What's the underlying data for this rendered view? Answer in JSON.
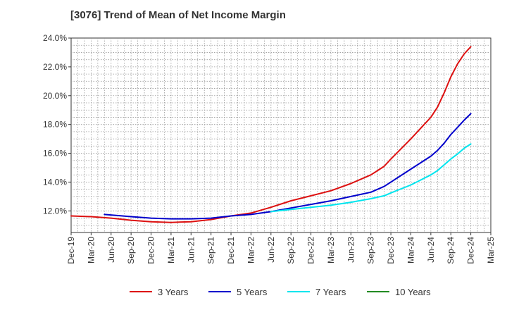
{
  "chart_data": {
    "type": "line",
    "title": "[3076]  Trend of Mean of Net Income Margin",
    "xlabel": "",
    "ylabel": "",
    "x_ticks": [
      "Dec-19",
      "Mar-20",
      "Jun-20",
      "Sep-20",
      "Dec-20",
      "Mar-21",
      "Jun-21",
      "Sep-21",
      "Dec-21",
      "Mar-22",
      "Jun-22",
      "Sep-22",
      "Dec-22",
      "Mar-23",
      "Jun-23",
      "Sep-23",
      "Dec-23",
      "Mar-24",
      "Jun-24",
      "Sep-24",
      "Dec-24",
      "Mar-25"
    ],
    "y_ticks": [
      "12.0%",
      "14.0%",
      "16.0%",
      "18.0%",
      "20.0%",
      "22.0%",
      "24.0%"
    ],
    "ylim": [
      10.5,
      24.0
    ],
    "grid": true,
    "legend_position": "bottom",
    "series": [
      {
        "name": "3 Years",
        "color": "#dd1111",
        "x": [
          "Dec-19",
          "Mar-20",
          "Jun-20",
          "Sep-20",
          "Dec-20",
          "Mar-21",
          "Jun-21",
          "Sep-21",
          "Dec-21",
          "Mar-22",
          "Jun-22",
          "Sep-22",
          "Dec-22",
          "Mar-23",
          "Jun-23",
          "Sep-23",
          "Oct-23",
          "Nov-23",
          "Dec-23",
          "Mar-24",
          "Jun-24",
          "Jul-24",
          "Aug-24",
          "Sep-24",
          "Oct-24",
          "Nov-24",
          "Dec-24"
        ],
        "values": [
          11.65,
          11.6,
          11.5,
          11.35,
          11.25,
          11.2,
          11.25,
          11.4,
          11.65,
          11.85,
          12.25,
          12.7,
          13.05,
          13.4,
          13.9,
          14.5,
          14.8,
          15.1,
          15.6,
          17.0,
          18.5,
          19.2,
          20.2,
          21.3,
          22.2,
          22.9,
          23.4
        ]
      },
      {
        "name": "5 Years",
        "color": "#0000cc",
        "x": [
          "May-20",
          "Sep-20",
          "Dec-20",
          "Mar-21",
          "Jun-21",
          "Sep-21",
          "Dec-21",
          "Mar-22",
          "Jun-22",
          "Sep-22",
          "Dec-22",
          "Mar-23",
          "Jun-23",
          "Sep-23",
          "Oct-23",
          "Nov-23",
          "Dec-23",
          "Mar-24",
          "Jun-24",
          "Jul-24",
          "Aug-24",
          "Sep-24",
          "Oct-24",
          "Nov-24",
          "Dec-24"
        ],
        "values": [
          11.75,
          11.6,
          11.5,
          11.45,
          11.45,
          11.5,
          11.65,
          11.75,
          11.95,
          12.2,
          12.45,
          12.7,
          13.0,
          13.3,
          13.5,
          13.7,
          14.0,
          14.9,
          15.8,
          16.2,
          16.7,
          17.3,
          17.8,
          18.3,
          18.75
        ]
      },
      {
        "name": "7 Years",
        "color": "#00e5ee",
        "x": [
          "Jun-22",
          "Sep-22",
          "Dec-22",
          "Mar-23",
          "Jun-23",
          "Sep-23",
          "Oct-23",
          "Nov-23",
          "Dec-23",
          "Mar-24",
          "Jun-24",
          "Jul-24",
          "Aug-24",
          "Sep-24",
          "Oct-24",
          "Nov-24",
          "Dec-24"
        ],
        "values": [
          11.95,
          12.1,
          12.25,
          12.4,
          12.6,
          12.85,
          12.95,
          13.05,
          13.25,
          13.8,
          14.5,
          14.8,
          15.2,
          15.6,
          15.95,
          16.35,
          16.65
        ]
      },
      {
        "name": "10 Years",
        "color": "#228b22",
        "x": [],
        "values": []
      }
    ]
  }
}
